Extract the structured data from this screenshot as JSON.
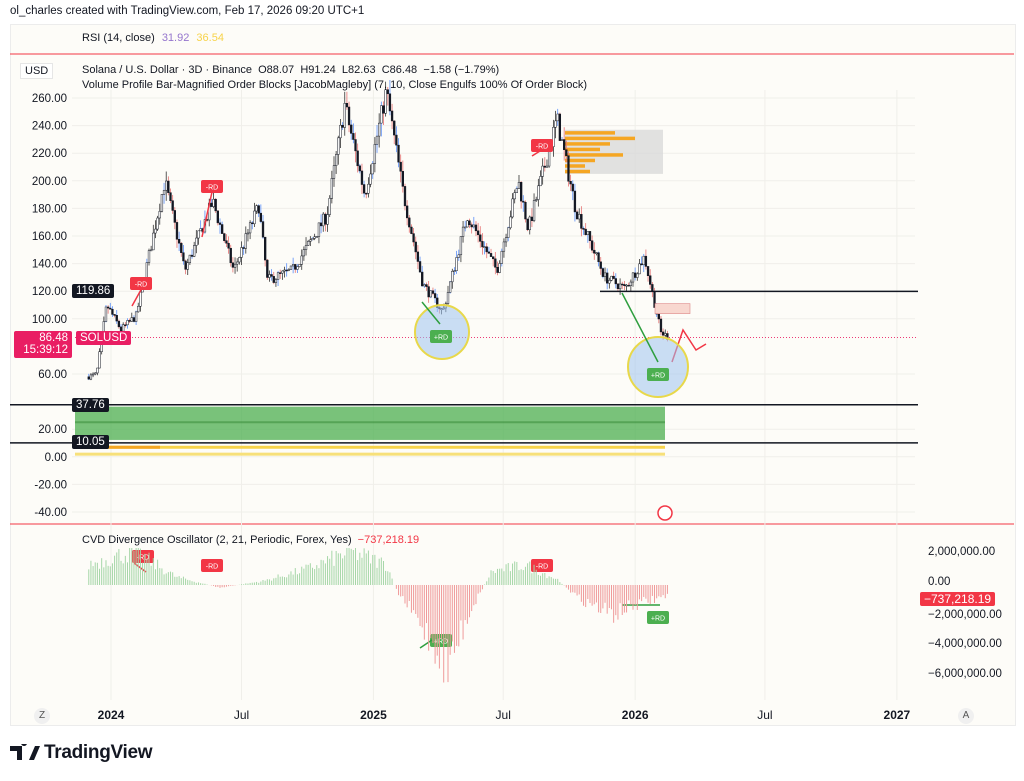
{
  "header": {
    "attribution": "ol_charles created with TradingView.com, Feb 17, 2026 09:20 UTC+1"
  },
  "rsi": {
    "label": "RSI (14, close)",
    "value1": "31.92",
    "value2": "36.54",
    "color1": "#9575cd",
    "color2": "#f7d34a"
  },
  "legend": {
    "currency": "USD",
    "symbol": "Solana / U.S. Dollar · 3D · Binance",
    "open": "O88.07",
    "high": "H91.24",
    "low": "L82.63",
    "close": "C86.48",
    "change": "−1.58 (−1.79%)",
    "indicator": "Volume Profile Bar-Magnified Order Blocks [JacobMagleby] (7, 10, Close Engulfs 100% Of Order Block)"
  },
  "price_tags": {
    "level_high": "119.86",
    "last_price": "86.48",
    "countdown": "15:39:12",
    "symbol_tag": "SOLUSD",
    "ob_top": "37.76",
    "ob_bottom": "10.05"
  },
  "cvd": {
    "label": "CVD Divergence Oscillator (2, 21, Periodic, Forex, Yes)",
    "value": "−737,218.19",
    "axis": [
      "2,000,000.00",
      "0.00",
      "−2,000,000.00",
      "−4,000,000.00",
      "−6,000,000.00"
    ]
  },
  "signals": {
    "bear": "-RD",
    "bull": "+RD"
  },
  "bottom": {
    "left_btn": "Z",
    "right_btn": "A",
    "brand": "TradingView"
  },
  "colors": {
    "up": "#131722",
    "down": "#131722",
    "bull": "#4caf50",
    "bear": "#f23645",
    "accent": "#e91e63"
  },
  "chart_data": {
    "type": "candlestick",
    "title": "Solana / U.S. Dollar · 3D · Binance",
    "ylabel": "USD",
    "yticks": [
      "260.00",
      "240.00",
      "220.00",
      "200.00",
      "180.00",
      "160.00",
      "140.00",
      "120.00",
      "100.00",
      "60.00",
      "20.00",
      "0.00",
      "-20.00",
      "-40.00"
    ],
    "xticks": [
      "2024",
      "Jul",
      "2025",
      "Jul",
      "2026",
      "Jul",
      "2027"
    ],
    "ylim": [
      -48,
      268
    ],
    "price_path": [
      [
        "2023-12-01",
        58
      ],
      [
        "2023-12-12",
        60
      ],
      [
        "2023-12-26",
        110
      ],
      [
        "2024-01-15",
        92
      ],
      [
        "2024-02-05",
        102
      ],
      [
        "2024-03-16",
        200
      ],
      [
        "2024-04-13",
        135
      ],
      [
        "2024-05-22",
        185
      ],
      [
        "2024-06-20",
        135
      ],
      [
        "2024-07-25",
        182
      ],
      [
        "2024-08-06",
        128
      ],
      [
        "2024-09-10",
        135
      ],
      [
        "2024-10-28",
        175
      ],
      [
        "2024-11-22",
        255
      ],
      [
        "2024-12-20",
        190
      ],
      [
        "2025-01-19",
        265
      ],
      [
        "2025-02-12",
        190
      ],
      [
        "2025-03-11",
        125
      ],
      [
        "2025-04-08",
        105
      ],
      [
        "2025-05-12",
        175
      ],
      [
        "2025-06-22",
        135
      ],
      [
        "2025-07-22",
        200
      ],
      [
        "2025-08-05",
        165
      ],
      [
        "2025-09-14",
        245
      ],
      [
        "2025-10-10",
        180
      ],
      [
        "2025-11-20",
        130
      ],
      [
        "2025-12-18",
        122
      ],
      [
        "2026-01-14",
        145
      ],
      [
        "2026-02-06",
        90
      ],
      [
        "2026-02-17",
        86.48
      ]
    ],
    "levels": {
      "resistance": 119.86,
      "last": 86.48,
      "order_block_top": 37.76,
      "order_block_bottom": 10.05
    },
    "bearish_order_block": [
      205,
      237
    ],
    "cvd_ylim": [
      -7000000,
      3000000
    ],
    "cvd_path": [
      [
        "2023-12-01",
        1500000
      ],
      [
        "2024-02-01",
        2500000
      ],
      [
        "2024-04-01",
        600000
      ],
      [
        "2024-06-01",
        -200000
      ],
      [
        "2024-08-01",
        300000
      ],
      [
        "2024-10-01",
        1200000
      ],
      [
        "2024-12-01",
        2500000
      ],
      [
        "2025-01-20",
        1500000
      ],
      [
        "2025-02-01",
        -300000
      ],
      [
        "2025-03-15",
        -3500000
      ],
      [
        "2025-04-15",
        -6000000
      ],
      [
        "2025-05-15",
        -2000000
      ],
      [
        "2025-06-15",
        1000000
      ],
      [
        "2025-08-01",
        1500000
      ],
      [
        "2025-09-15",
        400000
      ],
      [
        "2025-10-15",
        -1000000
      ],
      [
        "2025-12-01",
        -2200000
      ],
      [
        "2026-01-01",
        -1500000
      ],
      [
        "2026-02-17",
        -737218
      ]
    ]
  }
}
